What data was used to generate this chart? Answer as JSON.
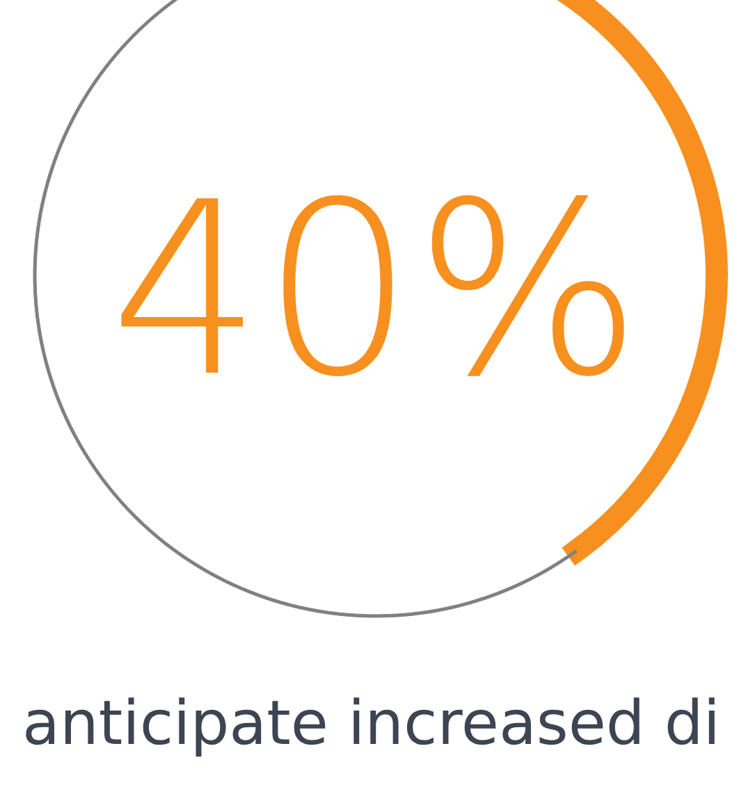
{
  "chart_data": {
    "type": "donut",
    "title": "40%",
    "categories": [
      null,
      null
    ],
    "values": [
      40,
      60
    ],
    "colors": [
      "#f7901e",
      "#808080"
    ],
    "annotations": [
      "anticipate increased di"
    ]
  }
}
